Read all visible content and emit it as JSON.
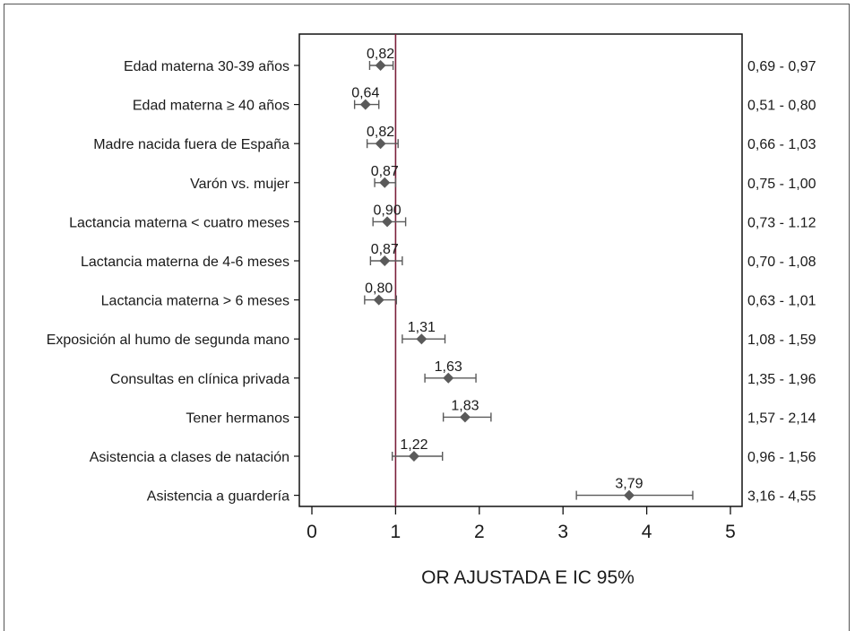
{
  "chart_data": {
    "type": "forest",
    "xlabel": "OR AJUSTADA E IC 95%",
    "xlim": [
      0,
      5
    ],
    "xticks": [
      "0",
      "1",
      "2",
      "3",
      "4",
      "5"
    ],
    "reference_line": 1,
    "colors": {
      "reference_line": "#7a1f3a",
      "marker": "#5a5a5a",
      "axis": "#111111"
    },
    "rows": [
      {
        "label": "Edad materna 30-39 años",
        "or": 0.82,
        "or_label": "0,82",
        "lo": 0.69,
        "hi": 0.97,
        "ci_label": "0,69 - 0,97"
      },
      {
        "label": "Edad materna ≥ 40 años",
        "or": 0.64,
        "or_label": "0,64",
        "lo": 0.51,
        "hi": 0.8,
        "ci_label": "0,51 - 0,80"
      },
      {
        "label": "Madre nacida fuera de España",
        "or": 0.82,
        "or_label": "0,82",
        "lo": 0.66,
        "hi": 1.03,
        "ci_label": "0,66 - 1,03"
      },
      {
        "label": "Varón vs. mujer",
        "or": 0.87,
        "or_label": "0,87",
        "lo": 0.75,
        "hi": 1.0,
        "ci_label": "0,75 - 1,00"
      },
      {
        "label": "Lactancia materna < cuatro meses",
        "or": 0.9,
        "or_label": "0,90",
        "lo": 0.73,
        "hi": 1.12,
        "ci_label": "0,73 - 1.12"
      },
      {
        "label": "Lactancia materna de 4-6 meses",
        "or": 0.87,
        "or_label": "0,87",
        "lo": 0.7,
        "hi": 1.08,
        "ci_label": "0,70 - 1,08"
      },
      {
        "label": "Lactancia materna > 6 meses",
        "or": 0.8,
        "or_label": "0,80",
        "lo": 0.63,
        "hi": 1.01,
        "ci_label": "0,63 - 1,01"
      },
      {
        "label": "Exposición al humo de segunda mano",
        "or": 1.31,
        "or_label": "1,31",
        "lo": 1.08,
        "hi": 1.59,
        "ci_label": "1,08 - 1,59"
      },
      {
        "label": "Consultas en clínica privada",
        "or": 1.63,
        "or_label": "1,63",
        "lo": 1.35,
        "hi": 1.96,
        "ci_label": "1,35 - 1,96"
      },
      {
        "label": "Tener hermanos",
        "or": 1.83,
        "or_label": "1,83",
        "lo": 1.57,
        "hi": 2.14,
        "ci_label": "1,57 - 2,14"
      },
      {
        "label": "Asistencia a clases de natación",
        "or": 1.22,
        "or_label": "1,22",
        "lo": 0.96,
        "hi": 1.56,
        "ci_label": "0,96 - 1,56"
      },
      {
        "label": "Asistencia a guardería",
        "or": 3.79,
        "or_label": "3,79",
        "lo": 3.16,
        "hi": 4.55,
        "ci_label": "3,16 - 4,55"
      }
    ]
  }
}
